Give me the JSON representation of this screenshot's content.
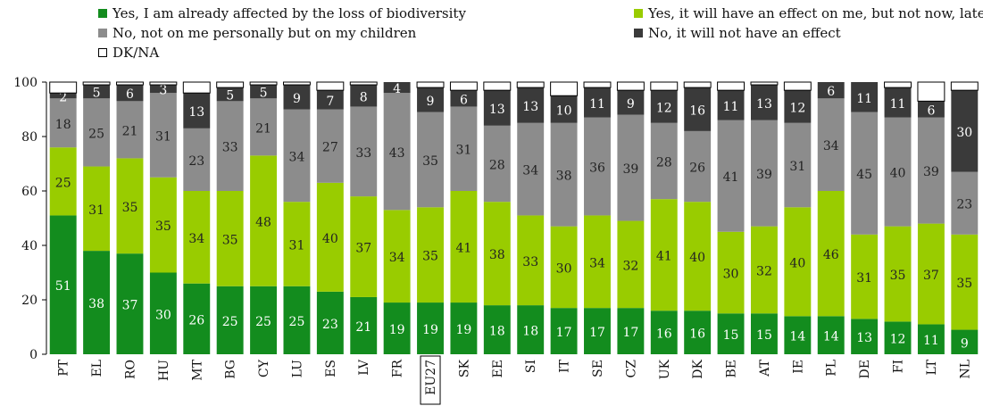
{
  "chart_data": {
    "type": "bar",
    "stacked": true,
    "categories": [
      "PT",
      "EL",
      "RO",
      "HU",
      "MT",
      "BG",
      "CY",
      "LU",
      "ES",
      "LV",
      "FR",
      "EU27",
      "SK",
      "EE",
      "SI",
      "IT",
      "SE",
      "CZ",
      "UK",
      "DK",
      "BE",
      "AT",
      "IE",
      "PL",
      "DE",
      "FI",
      "LT",
      "NL"
    ],
    "highlighted_category": "EU27",
    "series": [
      {
        "name": "Yes, I am already affected by the loss of biodiversity",
        "color": "#138c1e",
        "values": [
          51,
          38,
          37,
          30,
          26,
          25,
          25,
          25,
          23,
          21,
          19,
          19,
          19,
          18,
          18,
          17,
          17,
          17,
          16,
          16,
          15,
          15,
          14,
          14,
          13,
          12,
          11,
          9
        ]
      },
      {
        "name": "Yes, it will have an effect on me, but not now, later on",
        "color": "#99cc00",
        "values": [
          25,
          31,
          35,
          35,
          34,
          35,
          48,
          31,
          40,
          37,
          34,
          35,
          41,
          38,
          33,
          30,
          34,
          32,
          41,
          40,
          30,
          32,
          40,
          46,
          31,
          35,
          37,
          35
        ]
      },
      {
        "name": "No, not on me personally but on my children",
        "color": "#8c8c8c",
        "values": [
          18,
          25,
          21,
          31,
          23,
          33,
          21,
          34,
          27,
          33,
          43,
          35,
          31,
          28,
          34,
          38,
          36,
          39,
          28,
          26,
          41,
          39,
          31,
          34,
          45,
          40,
          39,
          23
        ]
      },
      {
        "name": "No, it will not have an effect",
        "color": "#3a3a3a",
        "values": [
          2,
          5,
          6,
          3,
          13,
          5,
          5,
          9,
          7,
          8,
          4,
          9,
          6,
          13,
          13,
          10,
          11,
          9,
          12,
          16,
          11,
          13,
          12,
          6,
          11,
          11,
          6,
          30
        ]
      },
      {
        "name": "DK/NA",
        "color": "#ffffff",
        "values": [
          4,
          1,
          1,
          1,
          4,
          2,
          1,
          1,
          3,
          1,
          0,
          2,
          3,
          3,
          2,
          5,
          2,
          3,
          3,
          2,
          3,
          1,
          3,
          0,
          0,
          2,
          7,
          3
        ]
      }
    ],
    "labels": {
      "0": [
        51,
        38,
        37,
        30,
        26,
        25,
        25,
        25,
        23,
        21,
        19,
        19,
        19,
        18,
        18,
        17,
        17,
        17,
        16,
        16,
        15,
        15,
        14,
        14,
        13,
        12,
        11,
        9
      ],
      "1": [
        25,
        31,
        35,
        35,
        34,
        35,
        48,
        31,
        40,
        37,
        34,
        35,
        41,
        38,
        33,
        30,
        34,
        32,
        41,
        40,
        30,
        32,
        40,
        46,
        31,
        35,
        37,
        35
      ],
      "2": [
        18,
        25,
        21,
        31,
        23,
        33,
        21,
        34,
        27,
        33,
        43,
        35,
        31,
        28,
        34,
        38,
        36,
        39,
        28,
        26,
        41,
        39,
        31,
        34,
        45,
        40,
        39,
        23
      ],
      "3": [
        2,
        5,
        6,
        3,
        13,
        5,
        5,
        9,
        7,
        8,
        4,
        9,
        6,
        13,
        13,
        10,
        11,
        9,
        12,
        16,
        11,
        13,
        12,
        6,
        11,
        11,
        6,
        30
      ]
    },
    "ylim": [
      0,
      100
    ],
    "yticks": [
      0,
      20,
      40,
      60,
      80,
      100
    ],
    "grid": false,
    "legend_position": "top"
  }
}
